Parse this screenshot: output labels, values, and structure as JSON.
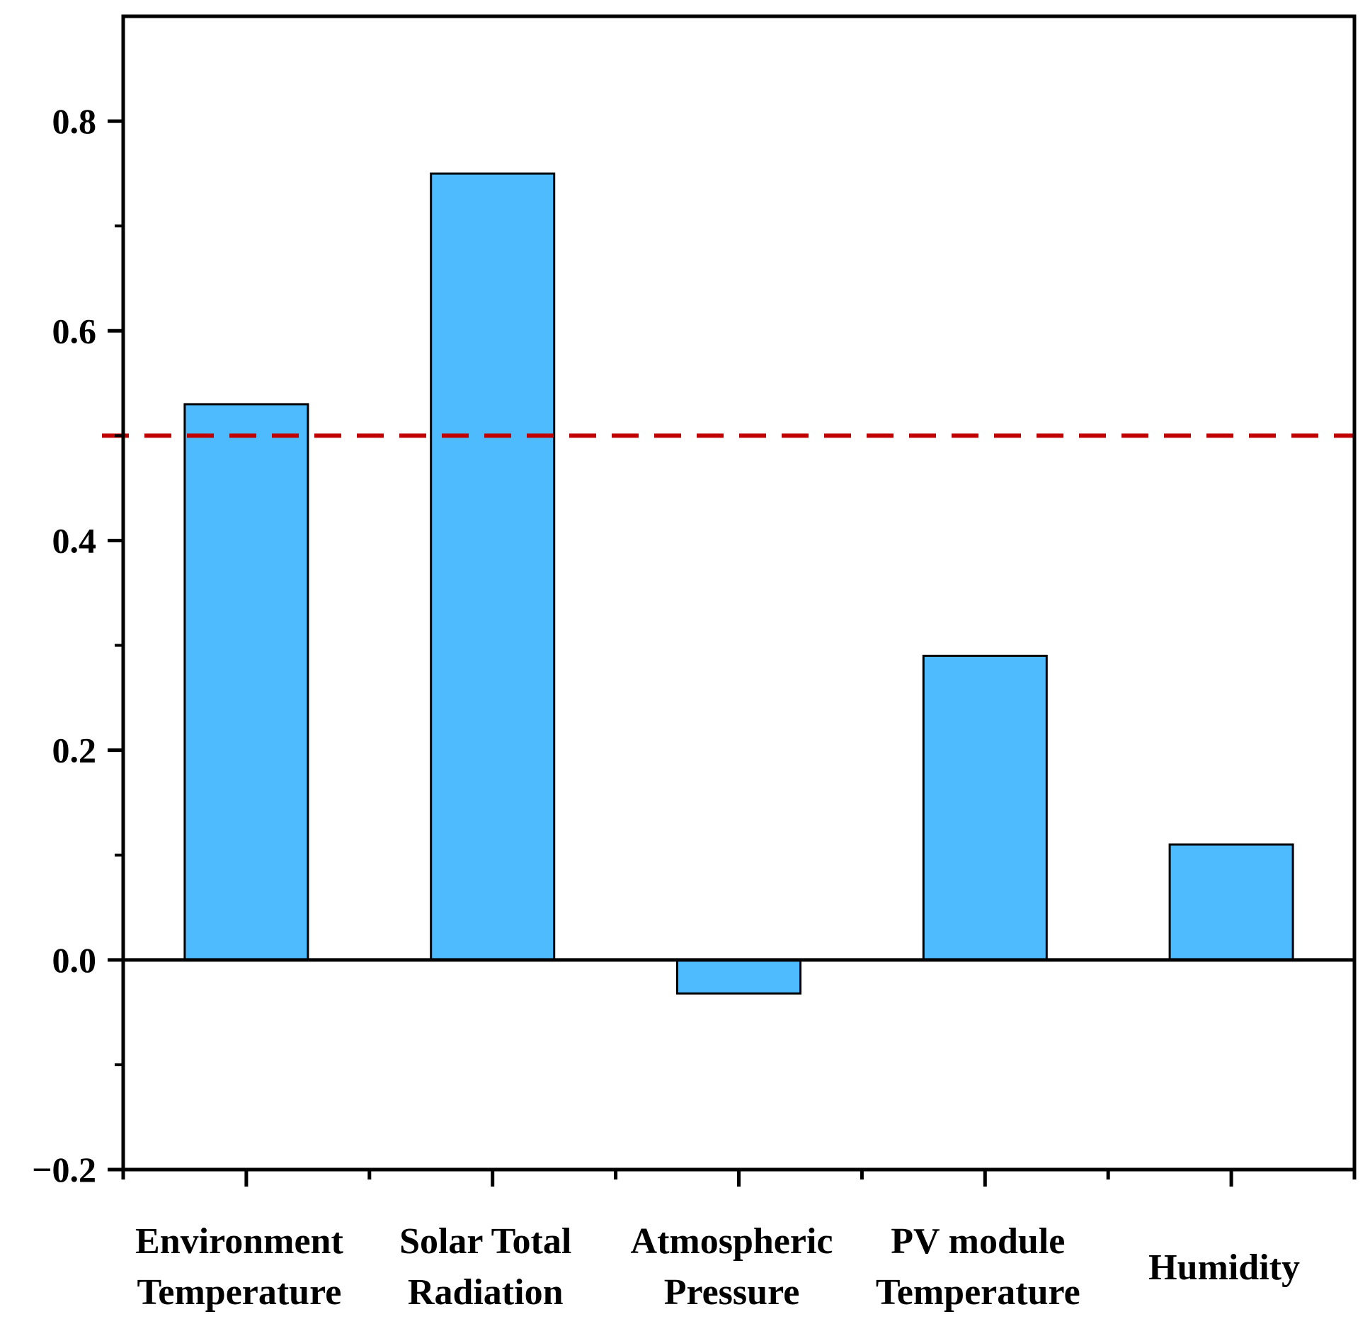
{
  "chart_data": {
    "type": "bar",
    "title": "",
    "xlabel": "",
    "ylabel": "",
    "categories": [
      [
        "Environment",
        "Temperature"
      ],
      [
        "Solar Total",
        "Radiation"
      ],
      [
        "Atmospheric",
        "Pressure"
      ],
      [
        "PV module",
        "Temperature"
      ],
      [
        "Humidity"
      ]
    ],
    "values": [
      0.53,
      0.75,
      -0.032,
      0.29,
      0.11
    ],
    "ylim": [
      -0.2,
      0.9
    ],
    "yticks": [
      -0.2,
      0.0,
      0.2,
      0.4,
      0.6,
      0.8
    ],
    "ytick_labels": [
      "−0.2",
      "0.0",
      "0.2",
      "0.4",
      "0.6",
      "0.8"
    ],
    "reference_line": {
      "value": 0.5,
      "style": "dashed"
    },
    "grid": false,
    "legend": "none",
    "colors": {
      "bar_fill": "#4fbbff",
      "bar_stroke": "#000000",
      "reference_line": "#c00000",
      "axis": "#000000"
    }
  }
}
